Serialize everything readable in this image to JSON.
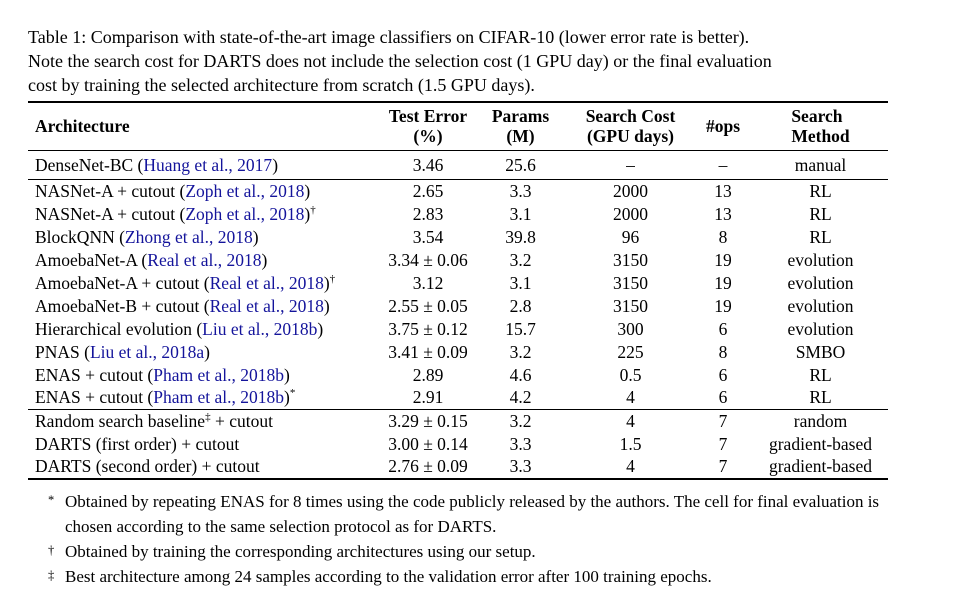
{
  "colors": {
    "citation": "#14149b",
    "text": "#000000",
    "rule": "#000000",
    "background": "#ffffff"
  },
  "caption": {
    "lines": [
      "Table 1: Comparison with state-of-the-art image classifiers on CIFAR-10 (lower error rate is better).",
      "Note the search cost for DARTS does not include the selection cost (1 GPU day) or the final evaluation",
      "cost by training the selected architecture from scratch (1.5 GPU days)."
    ]
  },
  "table": {
    "columns": [
      {
        "id": "architecture",
        "label_lines": [
          "Architecture"
        ],
        "align": "left"
      },
      {
        "id": "test-error",
        "label_lines": [
          "Test Error",
          "(%)"
        ],
        "align": "center"
      },
      {
        "id": "params",
        "label_lines": [
          "Params",
          "(M)"
        ],
        "align": "center"
      },
      {
        "id": "search-cost",
        "label_lines": [
          "Search Cost",
          "(GPU days)"
        ],
        "align": "center"
      },
      {
        "id": "ops",
        "label_lines": [
          "#ops"
        ],
        "align": "center"
      },
      {
        "id": "search-method",
        "label_lines": [
          "Search",
          "Method"
        ],
        "align": "center",
        "stack": "left"
      }
    ],
    "value_keys": [
      "test_error",
      "params",
      "search_cost",
      "ops",
      "method"
    ],
    "sections": [
      {
        "rows": [
          {
            "architecture": [
              {
                "type": "text",
                "value": "DenseNet-BC ("
              },
              {
                "type": "cite",
                "value": "Huang et al., 2017"
              },
              {
                "type": "text",
                "value": ")"
              }
            ],
            "test_error": "3.46",
            "params": "25.6",
            "search_cost": "–",
            "ops": "–",
            "method": "manual"
          }
        ]
      },
      {
        "rows": [
          {
            "architecture": [
              {
                "type": "text",
                "value": "NASNet-A + cutout ("
              },
              {
                "type": "cite",
                "value": "Zoph et al., 2018"
              },
              {
                "type": "text",
                "value": ")"
              }
            ],
            "test_error": "2.65",
            "params": "3.3",
            "search_cost": "2000",
            "ops": "13",
            "method": "RL"
          },
          {
            "architecture": [
              {
                "type": "text",
                "value": "NASNet-A + cutout ("
              },
              {
                "type": "cite",
                "value": "Zoph et al., 2018"
              },
              {
                "type": "text",
                "value": ")"
              },
              {
                "type": "sup",
                "value": "†"
              }
            ],
            "test_error": "2.83",
            "params": "3.1",
            "search_cost": "2000",
            "ops": "13",
            "method": "RL"
          },
          {
            "architecture": [
              {
                "type": "text",
                "value": "BlockQNN ("
              },
              {
                "type": "cite",
                "value": "Zhong et al., 2018"
              },
              {
                "type": "text",
                "value": ")"
              }
            ],
            "test_error": "3.54",
            "params": "39.8",
            "search_cost": "96",
            "ops": "8",
            "method": "RL"
          },
          {
            "architecture": [
              {
                "type": "text",
                "value": "AmoebaNet-A ("
              },
              {
                "type": "cite",
                "value": "Real et al., 2018"
              },
              {
                "type": "text",
                "value": ")"
              }
            ],
            "test_error": "3.34 ± 0.06",
            "params": "3.2",
            "search_cost": "3150",
            "ops": "19",
            "method": "evolution"
          },
          {
            "architecture": [
              {
                "type": "text",
                "value": "AmoebaNet-A + cutout ("
              },
              {
                "type": "cite",
                "value": "Real et al., 2018"
              },
              {
                "type": "text",
                "value": ")"
              },
              {
                "type": "sup",
                "value": "†"
              }
            ],
            "test_error": "3.12",
            "params": "3.1",
            "search_cost": "3150",
            "ops": "19",
            "method": "evolution"
          },
          {
            "architecture": [
              {
                "type": "text",
                "value": "AmoebaNet-B + cutout ("
              },
              {
                "type": "cite",
                "value": "Real et al., 2018"
              },
              {
                "type": "text",
                "value": ")"
              }
            ],
            "test_error": "2.55 ± 0.05",
            "params": "2.8",
            "search_cost": "3150",
            "ops": "19",
            "method": "evolution"
          },
          {
            "architecture": [
              {
                "type": "text",
                "value": "Hierarchical evolution ("
              },
              {
                "type": "cite",
                "value": "Liu et al., 2018b"
              },
              {
                "type": "text",
                "value": ")"
              }
            ],
            "test_error": "3.75 ± 0.12",
            "params": "15.7",
            "search_cost": "300",
            "ops": "6",
            "method": "evolution"
          },
          {
            "architecture": [
              {
                "type": "text",
                "value": "PNAS ("
              },
              {
                "type": "cite",
                "value": "Liu et al., 2018a"
              },
              {
                "type": "text",
                "value": ")"
              }
            ],
            "test_error": "3.41 ± 0.09",
            "params": "3.2",
            "search_cost": "225",
            "ops": "8",
            "method": "SMBO"
          },
          {
            "architecture": [
              {
                "type": "text",
                "value": "ENAS + cutout ("
              },
              {
                "type": "cite",
                "value": "Pham et al., 2018b"
              },
              {
                "type": "text",
                "value": ")"
              }
            ],
            "test_error": "2.89",
            "params": "4.6",
            "search_cost": "0.5",
            "ops": "6",
            "method": "RL"
          },
          {
            "architecture": [
              {
                "type": "text",
                "value": "ENAS + cutout ("
              },
              {
                "type": "cite",
                "value": "Pham et al., 2018b"
              },
              {
                "type": "text",
                "value": ")"
              },
              {
                "type": "sup",
                "value": "*"
              }
            ],
            "test_error": "2.91",
            "params": "4.2",
            "search_cost": "4",
            "ops": "6",
            "method": "RL"
          }
        ]
      },
      {
        "rows": [
          {
            "architecture": [
              {
                "type": "text",
                "value": "Random search baseline"
              },
              {
                "type": "sup",
                "value": "‡"
              },
              {
                "type": "text",
                "value": " + cutout"
              }
            ],
            "test_error": "3.29 ± 0.15",
            "params": "3.2",
            "search_cost": "4",
            "ops": "7",
            "method": "random"
          },
          {
            "architecture": [
              {
                "type": "text",
                "value": "DARTS (first order) + cutout"
              }
            ],
            "test_error": "3.00 ± 0.14",
            "params": "3.3",
            "search_cost": "1.5",
            "ops": "7",
            "method": "gradient-based"
          },
          {
            "architecture": [
              {
                "type": "text",
                "value": "DARTS (second order) + cutout"
              }
            ],
            "test_error": "2.76 ± 0.09",
            "params": "3.3",
            "search_cost": "4",
            "ops": "7",
            "method": "gradient-based"
          }
        ]
      }
    ]
  },
  "footnotes": [
    {
      "marker": "*",
      "text": "Obtained by repeating ENAS for 8 times using the code publicly released by the authors. The cell for final evaluation is chosen according to the same selection protocol as for DARTS."
    },
    {
      "marker": "†",
      "text": "Obtained by training the corresponding architectures using our setup."
    },
    {
      "marker": "‡",
      "text": "Best architecture among 24 samples according to the validation error after 100 training epochs."
    }
  ]
}
